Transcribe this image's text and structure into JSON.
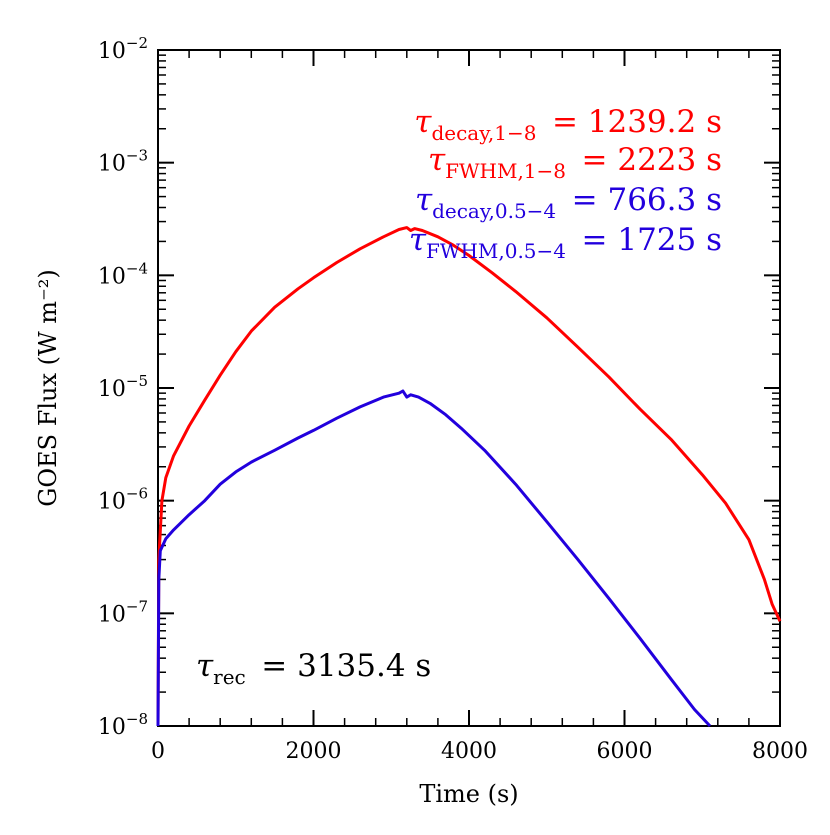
{
  "chart_data": {
    "type": "line",
    "title": "",
    "xlabel": "Time (s)",
    "ylabel": "GOES Flux (W m⁻²)",
    "xlim": [
      0,
      8000
    ],
    "ylim": [
      1e-08,
      0.01
    ],
    "y_scale": "log",
    "grid": false,
    "x_ticks": [
      0,
      2000,
      4000,
      6000,
      8000
    ],
    "x_tick_labels": [
      "0",
      "2000",
      "4000",
      "6000",
      "8000"
    ],
    "y_ticks": [
      1e-08,
      1e-07,
      1e-06,
      1e-05,
      0.0001,
      0.001,
      0.01
    ],
    "y_tick_exponents": [
      "−8",
      "−7",
      "−6",
      "−5",
      "−4",
      "−3",
      "−2"
    ],
    "y_tick_base": "10",
    "series": [
      {
        "color": "#ff0000",
        "x": [
          0,
          10,
          50,
          100,
          200,
          400,
          600,
          800,
          1000,
          1200,
          1500,
          1800,
          2000,
          2300,
          2600,
          2900,
          3100,
          3200,
          3250,
          3300,
          3400,
          3600,
          3800,
          4000,
          4300,
          4600,
          5000,
          5400,
          5800,
          6200,
          6600,
          7000,
          7300,
          7600,
          7800,
          7900,
          8000
        ],
        "y": [
          1e-08,
          3e-07,
          1e-06,
          1.6e-06,
          2.5e-06,
          4.6e-06,
          7.8e-06,
          1.3e-05,
          2.1e-05,
          3.2e-05,
          5.2e-05,
          7.6e-05,
          9.5e-05,
          0.00013,
          0.000172,
          0.00022,
          0.000255,
          0.000265,
          0.00025,
          0.00026,
          0.00025,
          0.00022,
          0.000185,
          0.00015,
          0.000105,
          7.2e-05,
          4.2e-05,
          2.3e-05,
          1.25e-05,
          6.5e-06,
          3.5e-06,
          1.7e-06,
          9.5e-07,
          4.5e-07,
          2e-07,
          1.2e-07,
          8.5e-08
        ]
      },
      {
        "color": "#2200dd",
        "x": [
          0,
          10,
          30,
          100,
          200,
          400,
          600,
          800,
          1000,
          1200,
          1500,
          1800,
          2000,
          2300,
          2600,
          2900,
          3100,
          3150,
          3200,
          3250,
          3350,
          3500,
          3700,
          3900,
          4200,
          4600,
          5000,
          5400,
          5800,
          6200,
          6600,
          6900,
          7100
        ],
        "y": [
          1e-08,
          2e-07,
          3.6e-07,
          4.6e-07,
          5.5e-07,
          7.5e-07,
          1e-06,
          1.4e-06,
          1.8e-06,
          2.2e-06,
          2.8e-06,
          3.6e-06,
          4.2e-06,
          5.4e-06,
          6.8e-06,
          8.3e-06,
          9e-06,
          9.4e-06,
          8.3e-06,
          8.7e-06,
          8.3e-06,
          7.3e-06,
          5.8e-06,
          4.4e-06,
          2.8e-06,
          1.4e-06,
          6.5e-07,
          3e-07,
          1.35e-07,
          6e-08,
          2.6e-08,
          1.4e-08,
          1e-08
        ]
      }
    ],
    "annotations": [
      {
        "symbol": "τ",
        "sub": "decay,1−8",
        "value": "=  1239.2  s",
        "color": "#ff0000"
      },
      {
        "symbol": "τ",
        "sub": "FWHM,1−8",
        "value": "=  2223  s",
        "color": "#ff0000"
      },
      {
        "symbol": "τ",
        "sub": "decay,0.5−4",
        "value": "=  766.3  s",
        "color": "#2200dd"
      },
      {
        "symbol": "τ",
        "sub": "FWHM,0.5−4",
        "value": "=  1725  s",
        "color": "#2200dd"
      },
      {
        "symbol": "τ",
        "sub": "rec",
        "value": "=  3135.4  s",
        "color": "#000000"
      }
    ]
  }
}
